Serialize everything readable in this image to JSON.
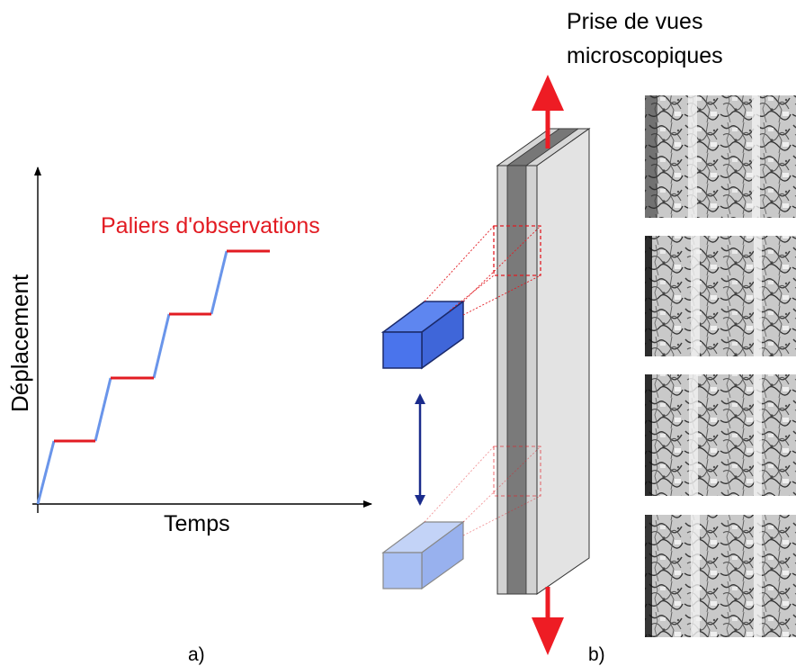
{
  "panel_a": {
    "y_axis_label": "Déplacement",
    "x_axis_label": "Temps",
    "annotation": "Paliers d'observations",
    "caption": "a)",
    "colors": {
      "ramp": "#6a95ea",
      "plateau": "#e21b22",
      "axis": "#000000"
    }
  },
  "panel_b": {
    "title_line1": "Prise de vues",
    "title_line2": "microscopiques",
    "caption": "b)",
    "colors": {
      "arrow_red": "#ee1c24",
      "camera_active": "#4a74ec",
      "camera_inactive": "#a9c0f4",
      "double_arrow": "#1a2b8c",
      "zoom_box": "#e21b22"
    },
    "micrograph_count": 4
  }
}
